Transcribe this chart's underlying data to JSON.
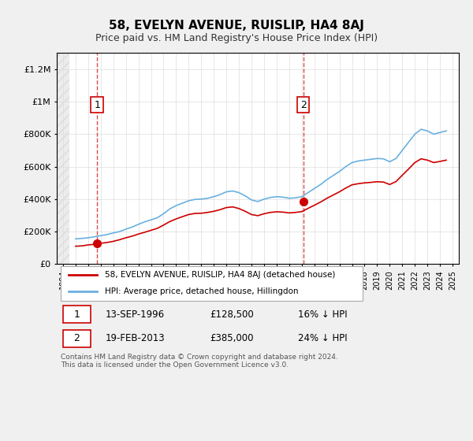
{
  "title": "58, EVELYN AVENUE, RUISLIP, HA4 8AJ",
  "subtitle": "Price paid vs. HM Land Registry's House Price Index (HPI)",
  "xlabel": "",
  "ylabel": "",
  "ylim": [
    0,
    1300000
  ],
  "xlim_start": 1993.5,
  "xlim_end": 2025.5,
  "yticks": [
    0,
    200000,
    400000,
    600000,
    800000,
    1000000,
    1200000
  ],
  "ytick_labels": [
    "£0",
    "£200K",
    "£400K",
    "£600K",
    "£800K",
    "£1M",
    "£1.2M"
  ],
  "background_color": "#f0f0f0",
  "plot_bg_color": "#ffffff",
  "hpi_color": "#6ab0e0",
  "price_color": "#cc0000",
  "sale1_date": 1996.71,
  "sale1_price": 128500,
  "sale1_label": "1",
  "sale2_date": 2013.12,
  "sale2_price": 385000,
  "sale2_label": "2",
  "legend_line1": "58, EVELYN AVENUE, RUISLIP, HA4 8AJ (detached house)",
  "legend_line2": "HPI: Average price, detached house, Hillingdon",
  "table_row1": [
    "1",
    "13-SEP-1996",
    "£128,500",
    "16% ↓ HPI"
  ],
  "table_row2": [
    "2",
    "19-FEB-2013",
    "£385,000",
    "24% ↓ HPI"
  ],
  "footnote": "Contains HM Land Registry data © Crown copyright and database right 2024.\nThis data is licensed under the Open Government Licence v3.0.",
  "hpi_data_x": [
    1995.0,
    1995.5,
    1996.0,
    1996.5,
    1997.0,
    1997.5,
    1998.0,
    1998.5,
    1999.0,
    1999.5,
    2000.0,
    2000.5,
    2001.0,
    2001.5,
    2002.0,
    2002.5,
    2003.0,
    2003.5,
    2004.0,
    2004.5,
    2005.0,
    2005.5,
    2006.0,
    2006.5,
    2007.0,
    2007.5,
    2008.0,
    2008.5,
    2009.0,
    2009.5,
    2010.0,
    2010.5,
    2011.0,
    2011.5,
    2012.0,
    2012.5,
    2013.0,
    2013.5,
    2014.0,
    2014.5,
    2015.0,
    2015.5,
    2016.0,
    2016.5,
    2017.0,
    2017.5,
    2018.0,
    2018.5,
    2019.0,
    2019.5,
    2020.0,
    2020.5,
    2021.0,
    2021.5,
    2022.0,
    2022.5,
    2023.0,
    2023.5,
    2024.0,
    2024.5
  ],
  "hpi_data_y": [
    155000,
    158000,
    162000,
    168000,
    175000,
    182000,
    192000,
    200000,
    215000,
    228000,
    245000,
    260000,
    272000,
    285000,
    310000,
    340000,
    360000,
    375000,
    390000,
    398000,
    400000,
    405000,
    415000,
    428000,
    445000,
    450000,
    440000,
    420000,
    395000,
    385000,
    400000,
    410000,
    415000,
    412000,
    405000,
    408000,
    415000,
    440000,
    465000,
    490000,
    520000,
    545000,
    570000,
    600000,
    625000,
    635000,
    640000,
    645000,
    650000,
    648000,
    630000,
    650000,
    700000,
    750000,
    800000,
    830000,
    820000,
    800000,
    810000,
    820000
  ],
  "price_data_x": [
    1995.0,
    1995.5,
    1996.0,
    1996.5,
    1997.0,
    1997.5,
    1998.0,
    1998.5,
    1999.0,
    1999.5,
    2000.0,
    2000.5,
    2001.0,
    2001.5,
    2002.0,
    2002.5,
    2003.0,
    2003.5,
    2004.0,
    2004.5,
    2005.0,
    2005.5,
    2006.0,
    2006.5,
    2007.0,
    2007.5,
    2008.0,
    2008.5,
    2009.0,
    2009.5,
    2010.0,
    2010.5,
    2011.0,
    2011.5,
    2012.0,
    2012.5,
    2013.0,
    2013.5,
    2014.0,
    2014.5,
    2015.0,
    2015.5,
    2016.0,
    2016.5,
    2017.0,
    2017.5,
    2018.0,
    2018.5,
    2019.0,
    2019.5,
    2020.0,
    2020.5,
    2021.0,
    2021.5,
    2022.0,
    2022.5,
    2023.0,
    2023.5,
    2024.0,
    2024.5
  ],
  "price_data_y": [
    110000,
    112000,
    118000,
    122000,
    128000,
    133000,
    140000,
    150000,
    162000,
    172000,
    185000,
    196000,
    208000,
    220000,
    240000,
    262000,
    278000,
    292000,
    305000,
    312000,
    313000,
    318000,
    325000,
    335000,
    348000,
    352000,
    342000,
    325000,
    305000,
    298000,
    310000,
    318000,
    322000,
    320000,
    315000,
    318000,
    323000,
    343000,
    362000,
    382000,
    405000,
    425000,
    445000,
    468000,
    488000,
    495000,
    500000,
    503000,
    507000,
    505000,
    490000,
    508000,
    547000,
    585000,
    625000,
    648000,
    640000,
    625000,
    632000,
    640000
  ]
}
